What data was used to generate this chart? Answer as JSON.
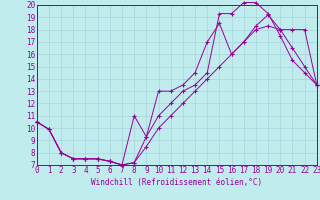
{
  "bg_color": "#c0ecee",
  "grid_color": "#a8d4d8",
  "line_color": "#990099",
  "spine_color": "#880088",
  "xlim": [
    0,
    23
  ],
  "ylim": [
    7,
    20
  ],
  "yticks": [
    7,
    8,
    9,
    10,
    11,
    12,
    13,
    14,
    15,
    16,
    17,
    18,
    19,
    20
  ],
  "xticks": [
    0,
    1,
    2,
    3,
    4,
    5,
    6,
    7,
    8,
    9,
    10,
    11,
    12,
    13,
    14,
    15,
    16,
    17,
    18,
    19,
    20,
    21,
    22,
    23
  ],
  "xlabel": "Windchill (Refroidissement éolien,°C)",
  "line1_x": [
    0,
    1,
    2,
    3,
    4,
    5,
    6,
    7,
    8,
    9,
    10,
    11,
    12,
    13,
    14,
    15,
    16,
    17,
    18,
    19,
    20,
    21,
    22,
    23
  ],
  "line1_y": [
    10.5,
    9.9,
    8.0,
    7.5,
    7.5,
    7.5,
    7.3,
    7.0,
    11.0,
    9.3,
    13.0,
    13.0,
    13.5,
    14.5,
    17.0,
    18.5,
    16.0,
    17.0,
    18.3,
    19.2,
    18.0,
    16.5,
    15.0,
    13.5
  ],
  "line2_x": [
    0,
    1,
    2,
    3,
    4,
    5,
    6,
    7,
    8,
    9,
    10,
    11,
    12,
    13,
    14,
    15,
    16,
    17,
    18,
    19,
    20,
    21,
    22,
    23
  ],
  "line2_y": [
    10.5,
    9.9,
    8.0,
    7.5,
    7.5,
    7.5,
    7.3,
    7.0,
    7.2,
    9.3,
    11.0,
    12.0,
    13.0,
    13.5,
    14.5,
    19.3,
    19.3,
    20.2,
    20.2,
    19.3,
    17.5,
    15.5,
    14.5,
    13.5
  ],
  "line3_x": [
    0,
    1,
    2,
    3,
    4,
    5,
    6,
    7,
    8,
    9,
    10,
    11,
    12,
    13,
    14,
    15,
    16,
    17,
    18,
    19,
    20,
    21,
    22,
    23
  ],
  "line3_y": [
    10.5,
    9.9,
    8.0,
    7.5,
    7.5,
    7.5,
    7.3,
    7.0,
    7.2,
    8.5,
    10.0,
    11.0,
    12.0,
    13.0,
    14.0,
    15.0,
    16.0,
    17.0,
    18.0,
    18.3,
    18.0,
    18.0,
    18.0,
    13.5
  ],
  "tick_fontsize": 5.5,
  "label_fontsize": 5.5
}
